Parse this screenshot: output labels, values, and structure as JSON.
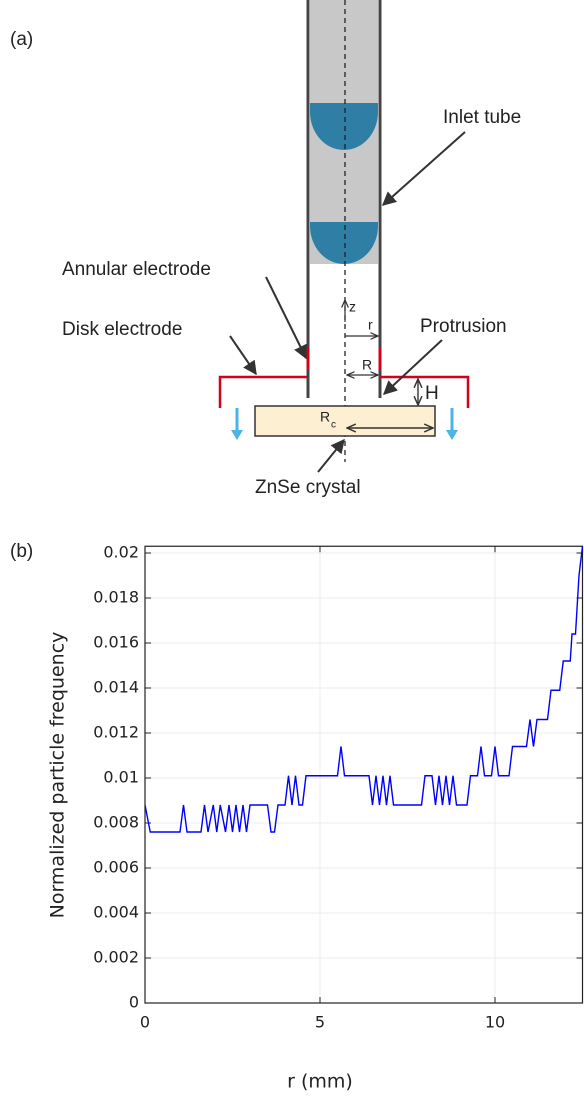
{
  "panel_a": {
    "label": "(a)",
    "inlet_tube": "Inlet tube",
    "annular_electrode": "Annular electrode",
    "disk_electrode": "Disk electrode",
    "protrusion": "Protrusion",
    "crystal": "ZnSe crystal",
    "z": "z",
    "r": "r",
    "R": "R",
    "H": "H",
    "Rc_main": "R",
    "Rc_sub": "c"
  },
  "chart_data": {
    "type": "line",
    "panel_label": "(b)",
    "x_label": "r (mm)",
    "y_label": "Normalized particle frequency",
    "x": [
      0,
      0.15,
      1.0,
      1.1,
      1.2,
      1.6,
      1.7,
      1.8,
      1.95,
      2.05,
      2.15,
      2.3,
      2.4,
      2.5,
      2.6,
      2.7,
      2.8,
      2.9,
      3.0,
      3.5,
      3.6,
      3.7,
      3.8,
      4.0,
      4.1,
      4.2,
      4.3,
      4.4,
      4.5,
      4.6,
      5.5,
      5.6,
      5.7,
      6.4,
      6.5,
      6.6,
      6.7,
      6.8,
      6.9,
      7.0,
      7.1,
      7.9,
      8.0,
      8.2,
      8.3,
      8.4,
      8.5,
      8.6,
      8.7,
      8.8,
      8.9,
      9.0,
      9.2,
      9.3,
      9.5,
      9.6,
      9.7,
      9.9,
      10.0,
      10.1,
      10.4,
      10.5,
      10.9,
      11.0,
      11.1,
      11.2,
      11.5,
      11.6,
      11.85,
      11.95,
      12.15,
      12.2,
      12.3,
      12.4,
      12.5
    ],
    "series": [
      {
        "color": "#0000ff",
        "values": [
          0.0088,
          0.0076,
          0.0076,
          0.0088,
          0.0076,
          0.0076,
          0.0088,
          0.0076,
          0.0088,
          0.0076,
          0.0088,
          0.0076,
          0.0088,
          0.0076,
          0.0088,
          0.0076,
          0.0088,
          0.0076,
          0.0088,
          0.0088,
          0.0076,
          0.0076,
          0.0088,
          0.0088,
          0.0101,
          0.0088,
          0.0101,
          0.0088,
          0.0088,
          0.0101,
          0.0101,
          0.0114,
          0.0101,
          0.0101,
          0.0088,
          0.0101,
          0.0088,
          0.0101,
          0.0088,
          0.0101,
          0.0088,
          0.0088,
          0.0101,
          0.0101,
          0.0088,
          0.0101,
          0.0088,
          0.0101,
          0.0088,
          0.0101,
          0.0088,
          0.0088,
          0.0088,
          0.0101,
          0.0101,
          0.0114,
          0.0101,
          0.0101,
          0.0114,
          0.0101,
          0.0101,
          0.0114,
          0.0114,
          0.0126,
          0.0114,
          0.0126,
          0.0126,
          0.0139,
          0.0139,
          0.0152,
          0.0152,
          0.0164,
          0.0164,
          0.019,
          0.0203
        ]
      }
    ],
    "xlim": [
      0,
      12.5
    ],
    "ylim": [
      0,
      0.0203
    ],
    "xticks": [
      0,
      5,
      10
    ],
    "yticks": [
      0,
      0.002,
      0.004,
      0.006,
      0.008,
      0.01,
      0.012,
      0.014,
      0.016,
      0.018,
      0.02
    ],
    "grid": true
  }
}
